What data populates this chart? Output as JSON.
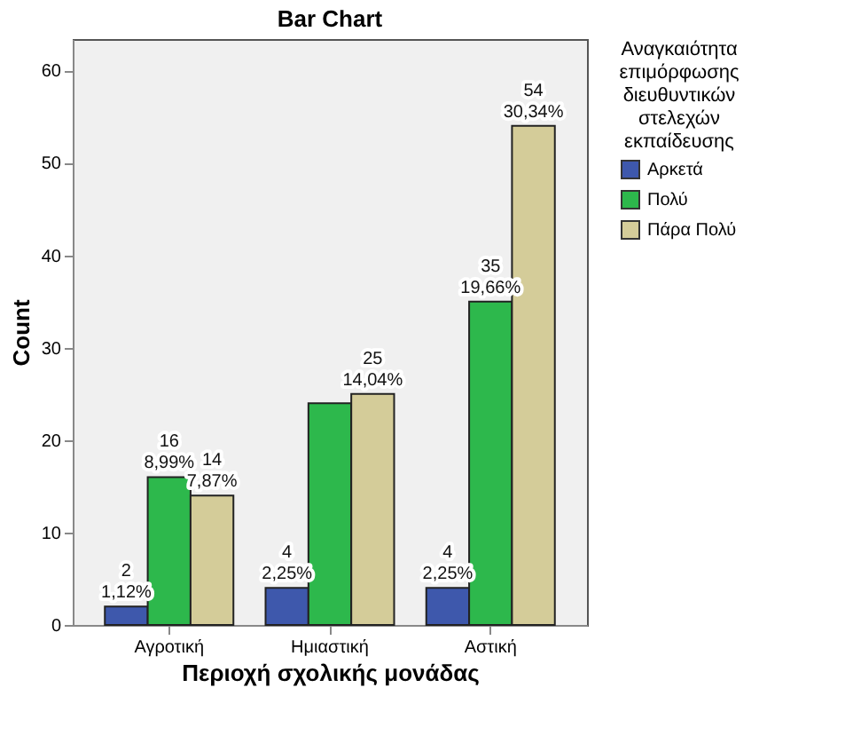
{
  "chart_data": {
    "type": "bar",
    "title": "Bar Chart",
    "xlabel": "Περιοχή σχολικής μονάδας",
    "ylabel": "Count",
    "legend_title": "Αναγκαιότητα επιμόρφωσης διευθυντικών στελεχών εκπαίδευσης",
    "categories": [
      "Αγροτική",
      "Ημιαστική",
      "Αστική"
    ],
    "series": [
      {
        "name": "Αρκετά",
        "color": "#3e58ac",
        "values": [
          2,
          4,
          4
        ],
        "value_labels": [
          "2\n1,12%",
          "4\n2,25%",
          "4\n2,25%"
        ]
      },
      {
        "name": "Πολύ",
        "color": "#2db84c",
        "values": [
          16,
          24,
          35
        ],
        "value_labels": [
          "16\n8,99%",
          null,
          "35\n19,66%"
        ]
      },
      {
        "name": "Πάρα Πολύ",
        "color": "#d4cc99",
        "values": [
          14,
          25,
          54
        ],
        "value_labels": [
          "14\n7,87%",
          "25\n14,04%",
          "54\n30,34%"
        ]
      }
    ],
    "ylim": [
      0,
      63.4
    ],
    "yticks": [
      0,
      10,
      20,
      30,
      40,
      50,
      60
    ],
    "grid": false,
    "legend": "top right"
  }
}
